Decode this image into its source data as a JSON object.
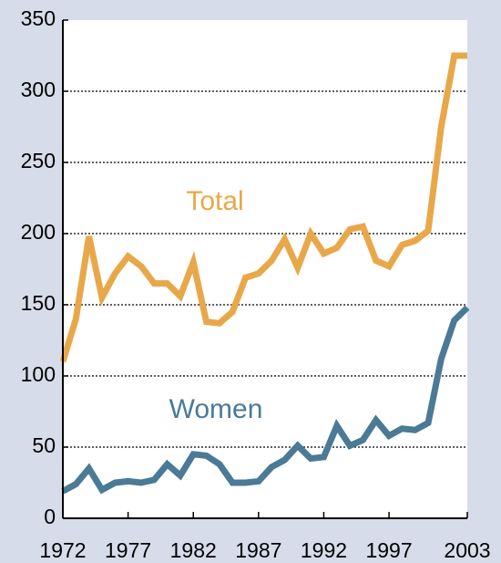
{
  "chart_data": {
    "type": "line",
    "x": [
      1972,
      1973,
      1974,
      1975,
      1976,
      1977,
      1978,
      1979,
      1980,
      1981,
      1982,
      1983,
      1984,
      1985,
      1986,
      1987,
      1988,
      1989,
      1990,
      1991,
      1992,
      1993,
      1994,
      1995,
      1996,
      1997,
      1998,
      1999,
      2000,
      2001,
      2002,
      2003
    ],
    "series": [
      {
        "name": "Total",
        "color": "#e8a84a",
        "values": [
          110,
          140,
          198,
          155,
          172,
          184,
          177,
          165,
          165,
          156,
          180,
          138,
          137,
          145,
          169,
          172,
          181,
          196,
          176,
          200,
          186,
          190,
          203,
          205,
          181,
          177,
          192,
          195,
          202,
          275,
          325,
          325
        ]
      },
      {
        "name": "Women",
        "color": "#4a7a96",
        "values": [
          19,
          24,
          35,
          20,
          25,
          26,
          25,
          27,
          38,
          30,
          45,
          44,
          38,
          25,
          25,
          26,
          36,
          41,
          51,
          42,
          43,
          65,
          51,
          55,
          69,
          58,
          63,
          62,
          67,
          112,
          139,
          148
        ]
      }
    ],
    "xlim": [
      1972,
      2003
    ],
    "xticks": [
      1972,
      1977,
      1982,
      1987,
      1992,
      1997,
      2003
    ],
    "ylim": [
      0,
      350
    ],
    "yticks": [
      0,
      50,
      100,
      150,
      200,
      250,
      300,
      350
    ],
    "grid": true
  }
}
